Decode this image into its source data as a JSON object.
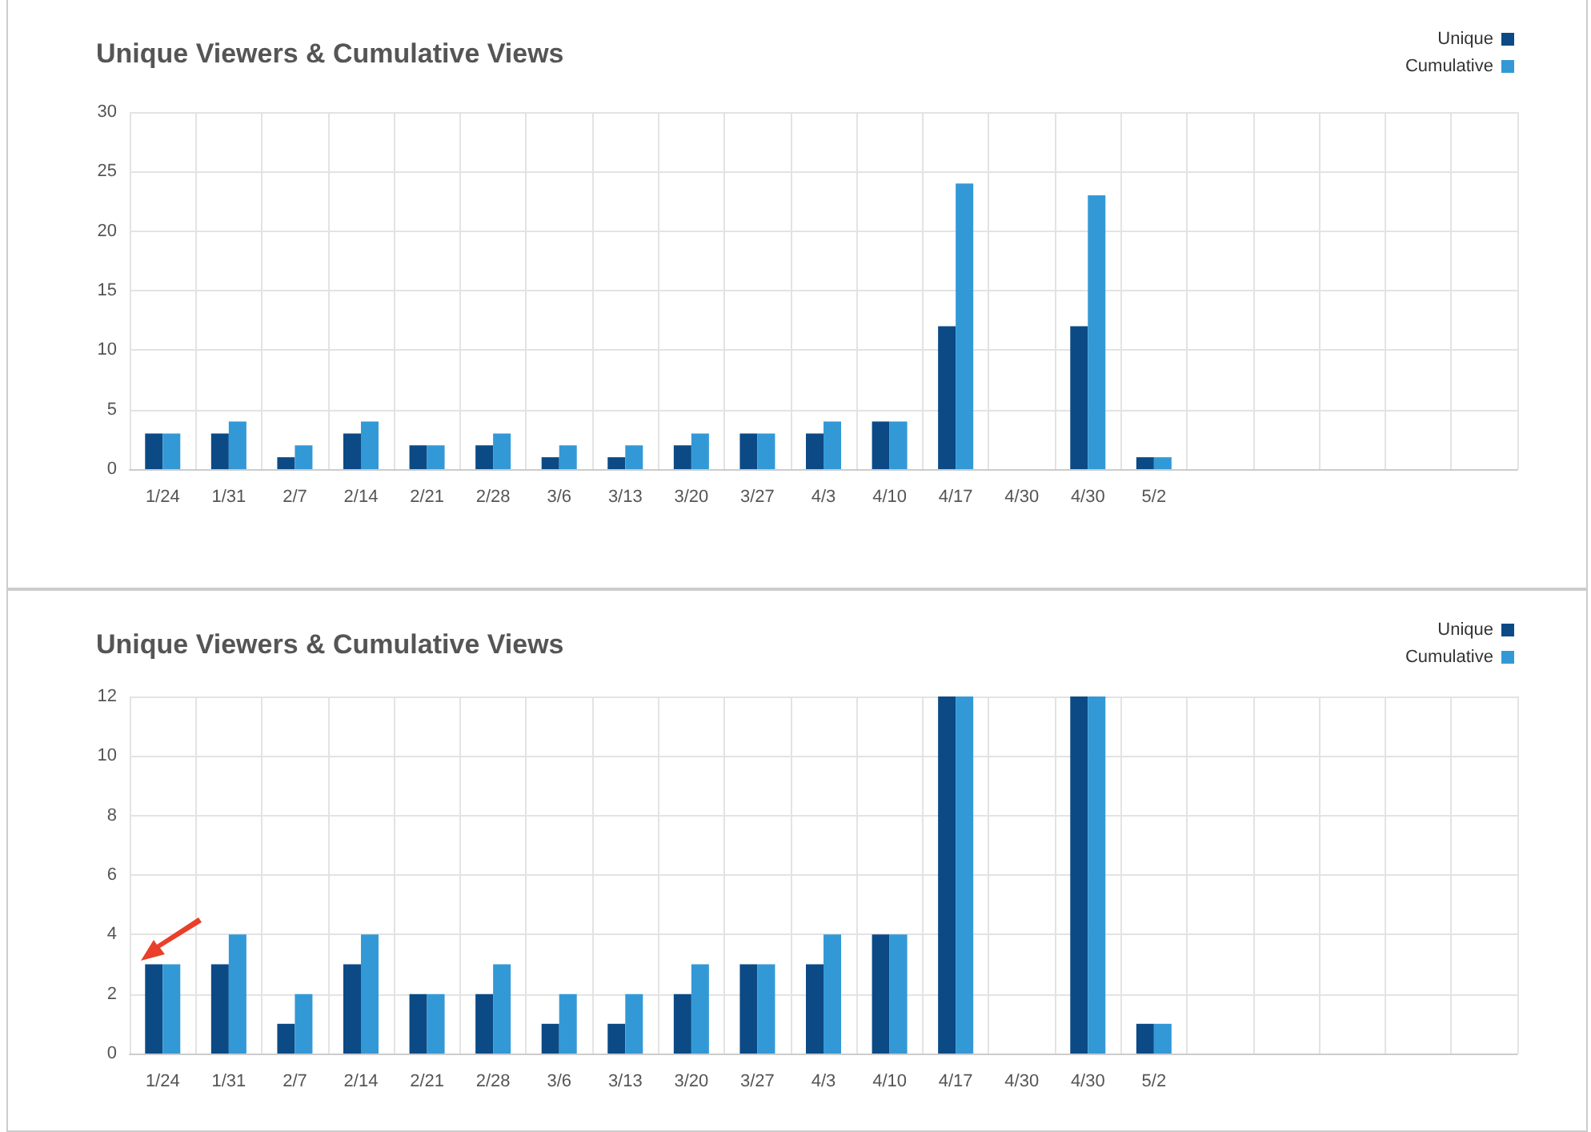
{
  "chart_data": [
    {
      "type": "bar",
      "title": "Unique Viewers & Cumulative Views",
      "categories": [
        "1/24",
        "1/31",
        "2/7",
        "2/14",
        "2/21",
        "2/28",
        "3/6",
        "3/13",
        "3/20",
        "3/27",
        "4/3",
        "4/10",
        "4/17",
        "4/30",
        "4/30",
        "5/2",
        null,
        null,
        null,
        null,
        null
      ],
      "series": [
        {
          "name": "Unique",
          "color": "#0b4a85",
          "values": [
            3,
            3,
            1,
            3,
            2,
            2,
            1,
            1,
            2,
            3,
            3,
            4,
            12,
            null,
            12,
            1,
            null,
            null,
            null,
            null,
            null
          ]
        },
        {
          "name": "Cumulative",
          "color": "#3399d6",
          "values": [
            3,
            4,
            2,
            4,
            2,
            3,
            2,
            2,
            3,
            3,
            4,
            4,
            24,
            null,
            23,
            1,
            null,
            null,
            null,
            null,
            null
          ]
        }
      ],
      "ylim": [
        0,
        30
      ],
      "yticks": [
        0,
        5,
        10,
        15,
        20,
        25,
        30
      ],
      "grid": true,
      "legend": "top right"
    },
    {
      "type": "bar",
      "title": "Unique Viewers & Cumulative Views",
      "categories": [
        "1/24",
        "1/31",
        "2/7",
        "2/14",
        "2/21",
        "2/28",
        "3/6",
        "3/13",
        "3/20",
        "3/27",
        "4/3",
        "4/10",
        "4/17",
        "4/30",
        "4/30",
        "5/2",
        null,
        null,
        null,
        null,
        null
      ],
      "series": [
        {
          "name": "Unique",
          "color": "#0b4a85",
          "values": [
            3,
            3,
            1,
            3,
            2,
            2,
            1,
            1,
            2,
            3,
            3,
            4,
            12,
            null,
            12,
            1,
            null,
            null,
            null,
            null,
            null
          ]
        },
        {
          "name": "Cumulative",
          "color": "#3399d6",
          "values": [
            3,
            4,
            2,
            4,
            2,
            3,
            2,
            2,
            3,
            3,
            4,
            4,
            12,
            null,
            12,
            1,
            null,
            null,
            null,
            null,
            null
          ]
        }
      ],
      "ylim": [
        0,
        12
      ],
      "yticks": [
        0,
        2,
        4,
        6,
        8,
        10,
        12
      ],
      "grid": true,
      "legend": "top right"
    }
  ]
}
